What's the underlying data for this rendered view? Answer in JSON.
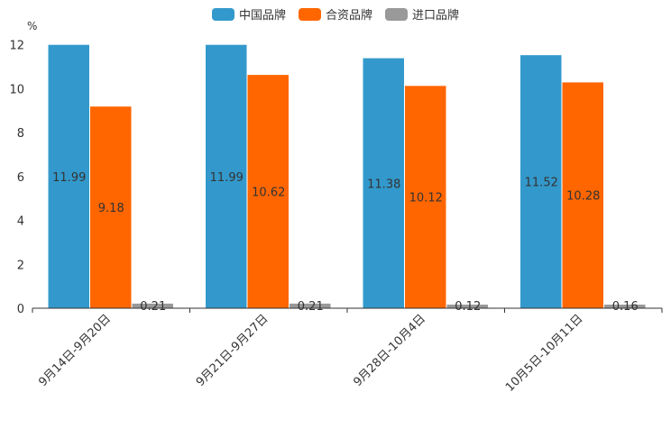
{
  "chart_data": {
    "type": "bar",
    "unit": "%",
    "categories": [
      "9月14日-9月20日",
      "9月21日-9月27日",
      "9月28日-10月4日",
      "10月5日-10月11日"
    ],
    "series": [
      {
        "name": "中国品牌",
        "color": "#3399cc",
        "values": [
          11.99,
          11.99,
          11.38,
          11.52
        ],
        "labels": [
          "11.99",
          "11.99",
          "11.38",
          "11.52"
        ]
      },
      {
        "name": "合资品牌",
        "color": "#ff6600",
        "values": [
          9.18,
          10.62,
          10.12,
          10.28
        ],
        "labels": [
          "9.18",
          "10.62",
          "10.12",
          "10.28"
        ]
      },
      {
        "name": "进口品牌",
        "color": "#999999",
        "values": [
          0.21,
          0.21,
          0.12,
          0.16
        ],
        "labels": [
          "0.21",
          "0.21",
          "0.12",
          "0.16"
        ]
      }
    ],
    "ylim": [
      0,
      12
    ],
    "yticks": [
      "0",
      "2",
      "4",
      "6",
      "8",
      "10",
      "12"
    ],
    "legend_position": "top-center"
  }
}
